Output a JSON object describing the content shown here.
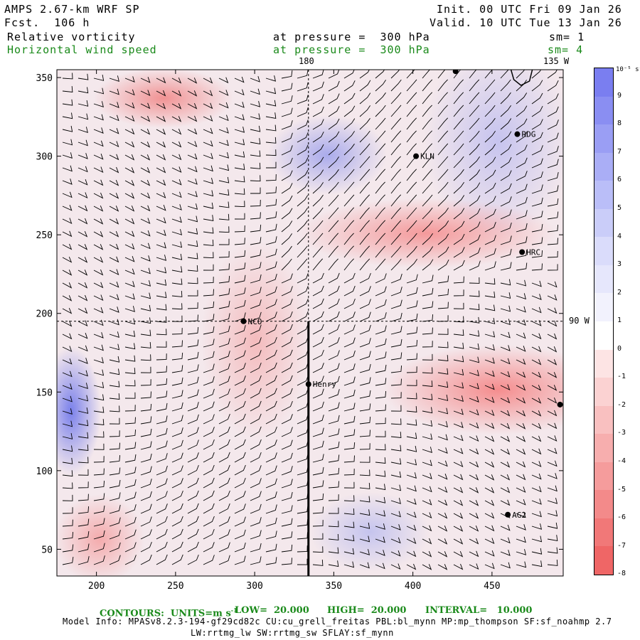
{
  "header": {
    "model": "AMPS 2.67-km WRF SP",
    "fcst": "Fcst.  106 h",
    "init": "Init. 00 UTC Fri 09 Jan 26",
    "valid": "Valid. 10 UTC Tue 13 Jan 26",
    "field1": "Relative vorticity",
    "field1_level": "at pressure =  300 hPa",
    "field1_sm": "sm= 1",
    "field2": "Horizontal wind speed",
    "field2_level": "at pressure =  300 hPa",
    "field2_sm": "sm= 4"
  },
  "map": {
    "lon_labels": {
      "top_180": "180",
      "top_135w": "135 W",
      "right_90w": "90 W"
    },
    "x_ticks": [
      200,
      250,
      300,
      350,
      400,
      450
    ],
    "y_ticks": [
      50,
      100,
      150,
      200,
      250,
      300,
      350
    ],
    "x_range": [
      175,
      495
    ],
    "y_range": [
      33,
      355
    ],
    "stations": [
      {
        "name": "RDG",
        "x": 466,
        "y": 314
      },
      {
        "name": "KLN",
        "x": 402,
        "y": 300
      },
      {
        "name": "HRC",
        "x": 469,
        "y": 239
      },
      {
        "name": "NCO",
        "x": 293,
        "y": 195
      },
      {
        "name": "Henry",
        "x": 334,
        "y": 155
      },
      {
        "name": "AG2",
        "x": 460,
        "y": 72
      },
      {
        "name": "",
        "x": 427,
        "y": 354
      },
      {
        "name": "",
        "x": 493,
        "y": 142
      }
    ],
    "section_line": {
      "x": 334,
      "y_start": 195,
      "y_end": 33
    },
    "colors": {
      "barb": "#000000",
      "line": "#000000"
    }
  },
  "colorbar": {
    "unit": "10⁻⁵ s⁻¹",
    "labels": [
      "9",
      "8",
      "7",
      "6",
      "5",
      "4",
      "3",
      "2",
      "1",
      "0",
      "-1",
      "-2",
      "-3",
      "-4",
      "-5",
      "-6",
      "-7",
      "-8"
    ],
    "colors": [
      "#7a7ef0",
      "#8a8ef2",
      "#9a9ef4",
      "#aaaef6",
      "#babef8",
      "#cacdf9",
      "#dadcfb",
      "#e6e7fc",
      "#f2f2fd",
      "#ffffff",
      "#fde4e4",
      "#fbd2d2",
      "#f9c0c0",
      "#f7aeae",
      "#f59c9c",
      "#f38a8a",
      "#f17878",
      "#ef6666"
    ]
  },
  "footer": {
    "contours_label": "CONTOURS:  UNITS=m s",
    "contours_sup": "-1",
    "low": "LOW=  20.000",
    "high": "HIGH=  20.000",
    "interval": "INTERVAL=   10.000",
    "model_info": "Model Info: MPASv8.2.3-194-gf29cd82c CU:cu_grell_freitas PBL:bl_mynn MP:mp_thompson SF:sf_noahmp 2.7",
    "model_info2": "LW:rrtmg_lw SW:rrtmg_sw SFLAY:sf_mynn"
  }
}
